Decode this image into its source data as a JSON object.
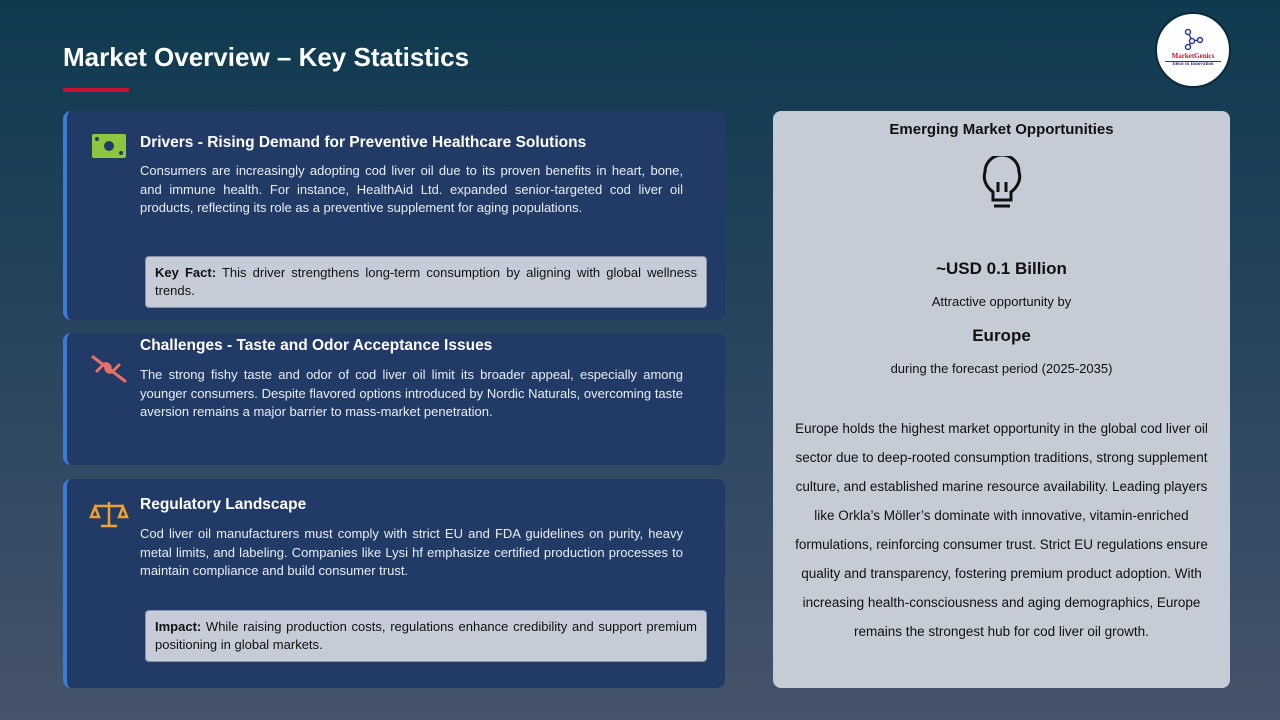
{
  "header": {
    "title": "Market Overview – Key Statistics",
    "logo_text": "MarketGenics",
    "logo_tagline": "Ideas to Innovation"
  },
  "cards": [
    {
      "icon": "money-icon",
      "title": "Drivers - Rising Demand for Preventive Healthcare Solutions",
      "body": "Consumers are increasingly adopting cod liver oil due to its proven benefits in heart, bone, and immune health. For instance, HealthAid Ltd. expanded senior-targeted cod liver oil products, reflecting its role as a preventive supplement for aging populations.",
      "note_label": "Key Fact:",
      "note": " This driver strengthens long-term consumption by aligning with global wellness trends."
    },
    {
      "icon": "broken-link-icon",
      "title": "Challenges - Taste and Odor Acceptance Issues",
      "body": "The strong fishy taste and odor of cod liver oil limit its broader appeal, especially among younger consumers. Despite flavored options introduced by Nordic Naturals, overcoming taste aversion remains a major barrier to mass-market penetration."
    },
    {
      "icon": "scales-icon",
      "title": "Regulatory Landscape",
      "body": "Cod liver oil manufacturers must comply with strict EU and FDA guidelines on purity, heavy metal limits, and labeling. Companies like Lysi hf emphasize certified production processes to maintain compliance and build consumer trust.",
      "note_label": "Impact:",
      "note": " While raising production costs, regulations enhance credibility and support premium positioning in global markets."
    }
  ],
  "opportunity": {
    "title": "Emerging Market Opportunities",
    "icon": "lightbulb-icon",
    "value": "~USD 0.1 Billion",
    "line1": "Attractive opportunity by",
    "region": "Europe",
    "period": "during the forecast period (2025-2035)",
    "body": "Europe holds the highest market opportunity in the global cod liver oil sector due to deep-rooted consumption traditions, strong supplement culture, and established marine resource availability. Leading players like Orkla’s Möller’s dominate with innovative, vitamin-enriched formulations, reinforcing consumer trust. Strict EU regulations ensure quality and transparency, fostering premium product adoption. With increasing health-consciousness and aging demographics, Europe remains the strongest hub for cod liver oil growth."
  },
  "colors": {
    "accent": "#c8102e",
    "card": "#223a66",
    "card_border": "#3a7bd5",
    "money": "#8dc63f",
    "challenge": "#e8706a",
    "regulatory": "#f0a030"
  }
}
